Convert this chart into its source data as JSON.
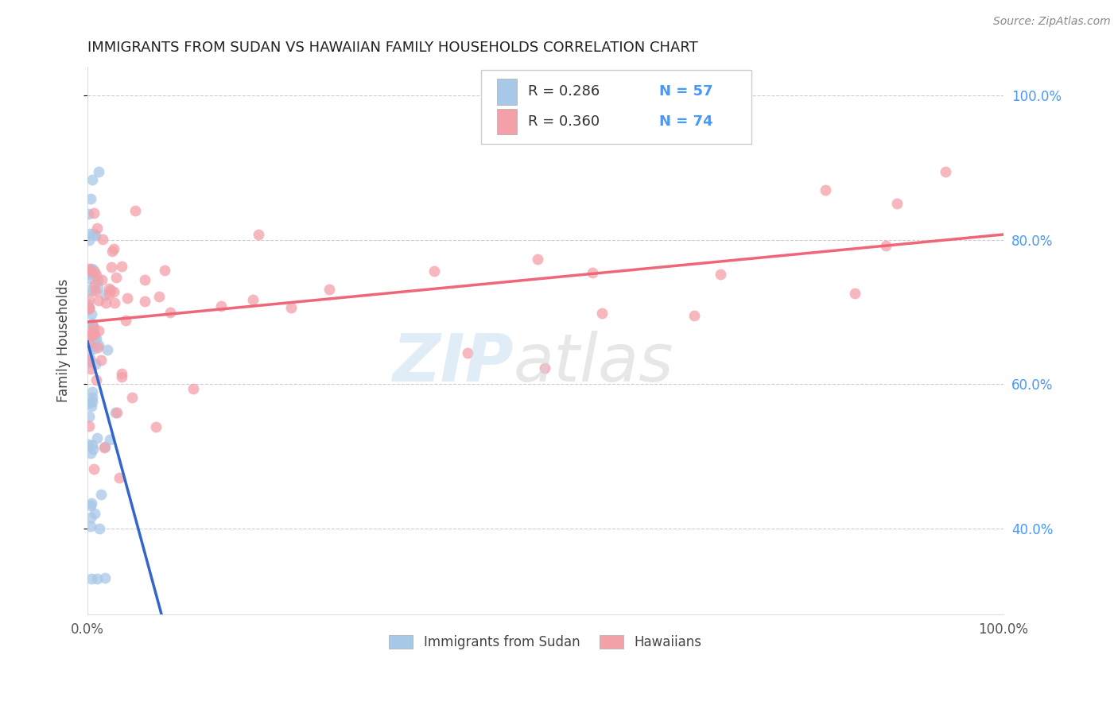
{
  "title": "IMMIGRANTS FROM SUDAN VS HAWAIIAN FAMILY HOUSEHOLDS CORRELATION CHART",
  "source": "Source: ZipAtlas.com",
  "ylabel": "Family Households",
  "legend_label1": "Immigrants from Sudan",
  "legend_label2": "Hawaiians",
  "legend_r1": "R = 0.286",
  "legend_n1": "N = 57",
  "legend_r2": "R = 0.360",
  "legend_n2": "N = 74",
  "blue_color": "#A8C8E8",
  "pink_color": "#F4A0A8",
  "blue_line_color": "#3366CC",
  "pink_line_color": "#EE6677",
  "title_color": "#222222",
  "right_axis_color": "#4499ff",
  "grid_color": "#cccccc",
  "background_color": "#ffffff",
  "xmin": 0.0,
  "xmax": 1.0,
  "ymin": 0.28,
  "ymax": 1.04,
  "ytick_values": [
    0.4,
    0.6,
    0.8,
    1.0
  ],
  "ytick_labels": [
    "40.0%",
    "60.0%",
    "80.0%",
    "100.0%"
  ]
}
